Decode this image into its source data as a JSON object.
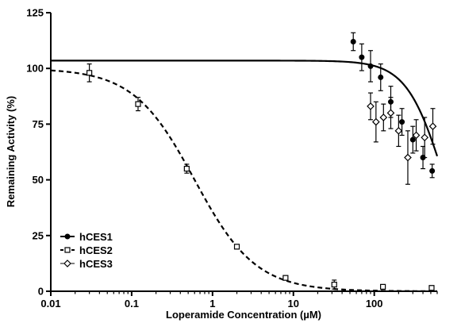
{
  "chart_data": {
    "type": "scatter",
    "title": "",
    "xlabel": "Loperamide Concentration (µM)",
    "ylabel": "Remaining Activity (%)",
    "x_scale": "log",
    "xlim": [
      0.01,
      600
    ],
    "ylim": [
      0,
      125
    ],
    "x_ticks": [
      0.01,
      0.1,
      1,
      10,
      100
    ],
    "x_tick_labels": [
      "0.01",
      "0.1",
      "1",
      "10",
      "100"
    ],
    "y_ticks": [
      0,
      25,
      50,
      75,
      100,
      125
    ],
    "y_tick_labels": [
      "0",
      "25",
      "50",
      "75",
      "100",
      "125"
    ],
    "grid": false,
    "legend_position": "bottom-left",
    "series": [
      {
        "name": "hCES1",
        "marker": "filled-circle",
        "line": "solid",
        "points": [
          {
            "x": 55,
            "y": 112,
            "err": 4
          },
          {
            "x": 70,
            "y": 105,
            "err": 6
          },
          {
            "x": 90,
            "y": 101,
            "err": 7
          },
          {
            "x": 120,
            "y": 96,
            "err": 6
          },
          {
            "x": 160,
            "y": 85,
            "err": 7
          },
          {
            "x": 220,
            "y": 76,
            "err": 6
          },
          {
            "x": 300,
            "y": 68,
            "err": 6
          },
          {
            "x": 400,
            "y": 60,
            "err": 5
          },
          {
            "x": 520,
            "y": 54,
            "err": 3
          }
        ],
        "fit_curve": {
          "top": 103.5,
          "bottom": 0,
          "ic50": 720,
          "hill": 1.9
        }
      },
      {
        "name": "hCES2",
        "marker": "open-square",
        "line": "dashed",
        "points": [
          {
            "x": 0.03,
            "y": 98,
            "err": 4
          },
          {
            "x": 0.12,
            "y": 84,
            "err": 3
          },
          {
            "x": 0.48,
            "y": 55,
            "err": 2
          },
          {
            "x": 2,
            "y": 20,
            "err": 1
          },
          {
            "x": 8,
            "y": 6,
            "err": 1
          },
          {
            "x": 32,
            "y": 3,
            "err": 2
          },
          {
            "x": 128,
            "y": 2,
            "err": 1
          },
          {
            "x": 512,
            "y": 1.5,
            "err": 1
          }
        ],
        "fit_curve": {
          "top": 100,
          "bottom": 0,
          "ic50": 0.6,
          "hill": 1.15
        }
      },
      {
        "name": "hCES3",
        "marker": "open-diamond",
        "line": "none",
        "points": [
          {
            "x": 90,
            "y": 83,
            "err": 6
          },
          {
            "x": 105,
            "y": 76,
            "err": 9
          },
          {
            "x": 130,
            "y": 78,
            "err": 6
          },
          {
            "x": 160,
            "y": 80,
            "err": 7
          },
          {
            "x": 200,
            "y": 72,
            "err": 7
          },
          {
            "x": 260,
            "y": 60,
            "err": 12
          },
          {
            "x": 330,
            "y": 70,
            "err": 7
          },
          {
            "x": 420,
            "y": 69,
            "err": 9
          },
          {
            "x": 530,
            "y": 74,
            "err": 8
          }
        ]
      }
    ]
  }
}
